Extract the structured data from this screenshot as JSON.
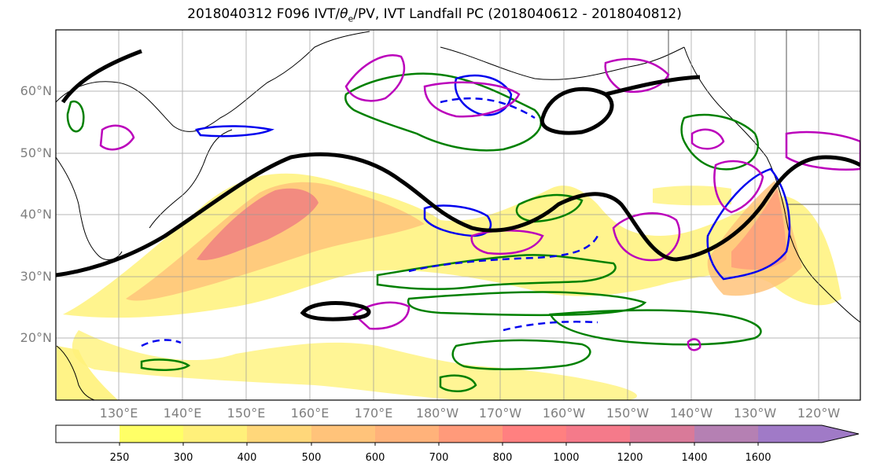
{
  "title": {
    "prefix": "2018040312 F096 IVT/",
    "theta": "θ",
    "theta_sub": "e",
    "suffix": "/PV, IVT Landfall PC (2018040612 - 2018040812)"
  },
  "lat_labels": [
    "60°N",
    "50°N",
    "40°N",
    "30°N",
    "20°N"
  ],
  "lon_labels": [
    "130°E",
    "140°E",
    "150°E",
    "160°E",
    "170°E",
    "180°W",
    "170°W",
    "160°W",
    "150°W",
    "140°W",
    "130°W",
    "120°W"
  ],
  "colorbar": {
    "ticks": [
      "250",
      "300",
      "400",
      "500",
      "600",
      "700",
      "800",
      "1000",
      "1200",
      "1400",
      "1600"
    ],
    "colors": [
      "#ffffff",
      "#ffff66",
      "#fff07a",
      "#ffd77a",
      "#ffc37a",
      "#ffb27a",
      "#ff9a7a",
      "#ff8080",
      "#f57a8a",
      "#d97a99",
      "#b580b3",
      "#a07ac7"
    ]
  },
  "colors": {
    "jet": "#000000",
    "pv_green": "#008000",
    "pv_blue": "#0000ee",
    "pc_magenta": "#bb00bb",
    "ivt_low": "#fff27a",
    "ivt_high": "#f08080",
    "grid": "#999999"
  }
}
